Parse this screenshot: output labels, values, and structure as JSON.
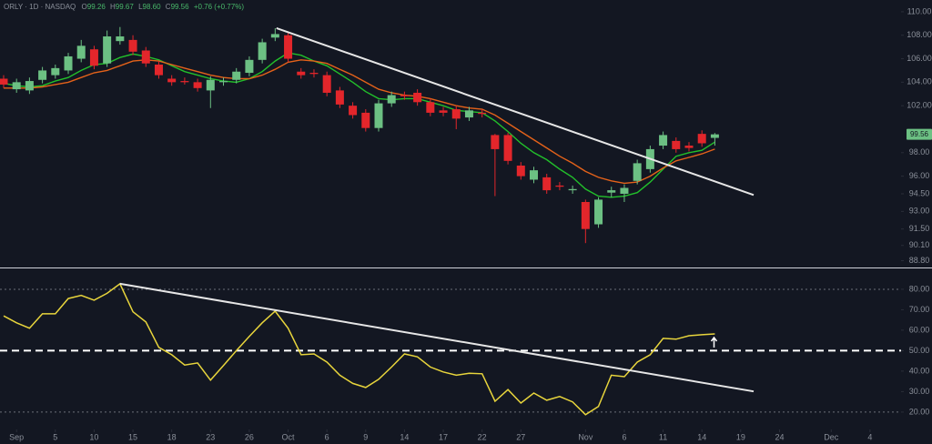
{
  "header": {
    "symbol": "ORLY · 1D · NASDAQ",
    "quote": [
      {
        "label": "O",
        "value": "99.26"
      },
      {
        "label": "H",
        "value": "99.67"
      },
      {
        "label": "L",
        "value": "98.60"
      },
      {
        "label": "C",
        "value": "99.56"
      }
    ],
    "change": "+0.76 (+0.77%)"
  },
  "chart_data": [
    {
      "type": "candlestick",
      "up_color": "#6cc083",
      "down_color": "#e3262b",
      "xlim": [
        -0.28,
        69.4
      ],
      "ylim": [
        88.3,
        111.0
      ],
      "open": [
        104.3,
        103.4,
        103.3,
        104.2,
        104.6,
        105.0,
        106.0,
        106.8,
        105.6,
        107.5,
        107.6,
        106.7,
        105.5,
        104.3,
        104.1,
        104.0,
        103.3,
        104.0,
        104.2,
        104.8,
        105.9,
        107.8,
        108.0,
        104.9,
        104.8,
        104.6,
        103.3,
        102.0,
        101.4,
        100.1,
        102.2,
        102.9,
        103.1,
        102.3,
        101.6,
        101.7,
        101.0,
        101.4,
        99.5,
        99.5,
        96.9,
        95.7,
        95.9,
        95.2,
        94.8,
        93.8,
        91.9,
        94.6,
        94.5,
        95.6,
        96.6,
        98.6,
        99.0,
        98.6,
        99.6,
        99.26
      ],
      "high": [
        104.6,
        104.3,
        104.4,
        105.3,
        105.5,
        106.5,
        107.6,
        107.1,
        108.4,
        108.7,
        108.0,
        107.0,
        105.8,
        104.6,
        104.4,
        104.3,
        104.5,
        104.4,
        105.2,
        106.2,
        107.7,
        108.6,
        108.3,
        105.2,
        105.1,
        104.9,
        103.6,
        102.3,
        101.7,
        102.5,
        103.2,
        103.2,
        103.4,
        102.6,
        101.9,
        102.0,
        101.9,
        101.7,
        99.6,
        99.7,
        97.2,
        96.8,
        96.2,
        95.5,
        95.2,
        94.0,
        94.2,
        95.1,
        95.3,
        97.4,
        98.6,
        99.8,
        99.3,
        98.9,
        99.9,
        99.67
      ],
      "low": [
        103.5,
        103.1,
        103.0,
        103.9,
        104.3,
        104.7,
        105.7,
        105.1,
        105.3,
        107.2,
        106.3,
        105.3,
        104.3,
        103.7,
        103.8,
        103.2,
        101.8,
        103.7,
        103.9,
        104.5,
        105.6,
        107.5,
        105.7,
        104.3,
        104.4,
        102.8,
        101.8,
        100.9,
        99.8,
        99.8,
        101.9,
        102.5,
        102.0,
        101.1,
        101.1,
        100.0,
        100.7,
        101.0,
        94.3,
        97.0,
        95.7,
        95.4,
        94.5,
        94.8,
        94.5,
        90.3,
        91.6,
        94.2,
        93.8,
        95.3,
        96.3,
        98.3,
        98.0,
        98.1,
        98.5,
        98.6
      ],
      "close": [
        103.8,
        104.0,
        104.1,
        105.0,
        105.2,
        106.2,
        107.1,
        105.4,
        107.9,
        107.9,
        106.6,
        105.6,
        104.6,
        104.0,
        104.0,
        103.5,
        104.2,
        104.1,
        104.9,
        105.9,
        107.4,
        108.1,
        106.0,
        104.6,
        104.7,
        103.1,
        102.1,
        101.2,
        100.1,
        102.2,
        102.9,
        102.8,
        102.3,
        101.4,
        101.4,
        100.9,
        101.6,
        101.3,
        98.3,
        97.3,
        96.0,
        96.5,
        94.8,
        95.1,
        94.9,
        91.5,
        94.0,
        94.8,
        95.0,
        97.1,
        98.3,
        99.5,
        98.3,
        98.4,
        98.8,
        99.56
      ],
      "overlays": [
        {
          "color": "#22c02b",
          "values": [
            103.9,
            103.7,
            103.6,
            103.7,
            104.1,
            104.4,
            105.0,
            105.5,
            105.6,
            106.1,
            106.4,
            106.2,
            105.9,
            105.4,
            104.9,
            104.6,
            104.3,
            104.1,
            104.0,
            104.3,
            104.9,
            105.8,
            106.5,
            106.3,
            105.8,
            105.4,
            104.7,
            104.0,
            103.2,
            102.6,
            102.5,
            102.6,
            102.6,
            102.3,
            102.0,
            101.6,
            101.5,
            101.4,
            100.7,
            99.8,
            98.8,
            98.0,
            97.4,
            96.6,
            95.9,
            94.9,
            94.3,
            94.2,
            94.3,
            94.6,
            95.5,
            96.6,
            97.7,
            98.0,
            98.2,
            98.9
          ]
        },
        {
          "color": "#e4621a",
          "values": [
            103.5,
            103.5,
            103.5,
            103.6,
            103.8,
            104.0,
            104.4,
            104.8,
            105.0,
            105.4,
            105.8,
            105.9,
            105.8,
            105.5,
            105.2,
            104.9,
            104.6,
            104.4,
            104.3,
            104.3,
            104.6,
            105.1,
            105.7,
            105.9,
            105.8,
            105.6,
            105.1,
            104.6,
            104.0,
            103.4,
            103.1,
            102.9,
            102.8,
            102.6,
            102.3,
            102.0,
            101.8,
            101.7,
            101.2,
            100.5,
            99.8,
            99.1,
            98.4,
            97.7,
            97.1,
            96.4,
            95.9,
            95.6,
            95.4,
            95.5,
            96.0,
            96.7,
            97.3,
            97.6,
            97.9,
            98.3
          ]
        }
      ],
      "trendlines": [
        {
          "color": "#e6e6e6",
          "from": [
            21.1,
            108.6
          ],
          "to": [
            58.0,
            94.4
          ]
        }
      ],
      "yticks": [
        {
          "value": 110,
          "label": "110.00"
        },
        {
          "value": 108,
          "label": "108.00"
        },
        {
          "value": 106,
          "label": "106.00"
        },
        {
          "value": 104,
          "label": "104.00"
        },
        {
          "value": 102,
          "label": "102.00"
        },
        {
          "value": 98,
          "label": "98.00"
        },
        {
          "value": 96,
          "label": "96.00"
        },
        {
          "value": 94.5,
          "label": "94.50"
        },
        {
          "value": 93,
          "label": "93.00"
        },
        {
          "value": 91.5,
          "label": "91.50"
        },
        {
          "value": 90.1,
          "label": "90.10"
        },
        {
          "value": 88.8,
          "label": "88.80"
        }
      ],
      "xticks": [
        {
          "value": 1,
          "label": "Sep"
        },
        {
          "value": 4,
          "label": "5"
        },
        {
          "value": 7,
          "label": "10"
        },
        {
          "value": 10,
          "label": "15"
        },
        {
          "value": 13,
          "label": "18"
        },
        {
          "value": 16,
          "label": "23"
        },
        {
          "value": 19,
          "label": "26"
        },
        {
          "value": 22,
          "label": "Oct"
        },
        {
          "value": 25,
          "label": "6"
        },
        {
          "value": 28,
          "label": "9"
        },
        {
          "value": 31,
          "label": "14"
        },
        {
          "value": 34,
          "label": "17"
        },
        {
          "value": 37,
          "label": "22"
        },
        {
          "value": 40,
          "label": "27"
        },
        {
          "value": 45,
          "label": "Nov"
        },
        {
          "value": 48,
          "label": "6"
        },
        {
          "value": 51,
          "label": "11"
        },
        {
          "value": 54,
          "label": "14"
        },
        {
          "value": 57,
          "label": "19"
        },
        {
          "value": 60,
          "label": "24"
        },
        {
          "value": 64,
          "label": "Dec"
        },
        {
          "value": 67,
          "label": "4"
        }
      ]
    },
    {
      "type": "line",
      "color": "#e8d53c",
      "xlim": [
        -0.28,
        69.4
      ],
      "ylim": [
        12.4,
        90.2
      ],
      "values": [
        67,
        63.6,
        61,
        68,
        68,
        75.5,
        77,
        74.7,
        78,
        82.7,
        69,
        64,
        51.6,
        48,
        43,
        44,
        35.6,
        42.7,
        50,
        57,
        63.6,
        69.3,
        61,
        48,
        48.4,
        44.4,
        38,
        34,
        32,
        36,
        42,
        48.4,
        47,
        42,
        39.6,
        38,
        39,
        38.7,
        25.3,
        31,
        24.4,
        29.3,
        25.8,
        27.6,
        25,
        18.7,
        22.7,
        38,
        37.3,
        44.4,
        48,
        56,
        55.6,
        57.3,
        57.8,
        58.2
      ],
      "levels": [
        {
          "value": 80,
          "color": "#6b6f78",
          "dash": "2 3"
        },
        {
          "value": 50,
          "color": "#ffffff",
          "dash": "8 5"
        },
        {
          "value": 20,
          "color": "#6b6f78",
          "dash": "2 3"
        }
      ],
      "trendlines": [
        {
          "color": "#e6e6e6",
          "from": [
            9,
            82.7
          ],
          "to": [
            58.0,
            30.1
          ]
        }
      ],
      "yticks": [
        {
          "value": 80,
          "label": "80.00"
        },
        {
          "value": 70,
          "label": "70.00"
        },
        {
          "value": 60,
          "label": "60.00"
        },
        {
          "value": 50,
          "label": "50.00"
        },
        {
          "value": 40,
          "label": "40.00"
        },
        {
          "value": 30,
          "label": "30.00"
        },
        {
          "value": 20,
          "label": "20.00"
        }
      ]
    }
  ]
}
